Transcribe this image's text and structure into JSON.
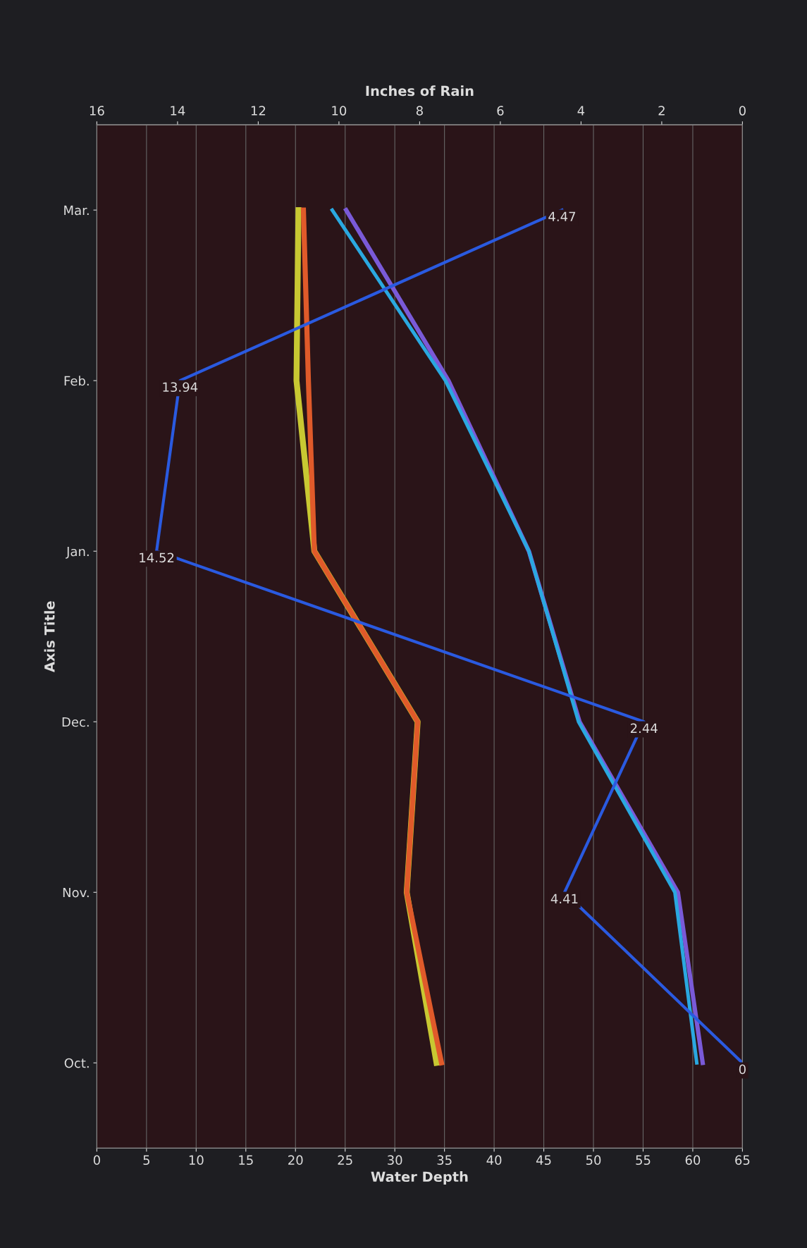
{
  "chart_data": {
    "type": "line",
    "orientation": "horizontal",
    "ylabel": "Axis Title",
    "xlabel": "Water Depth",
    "x2label": "Inches of Rain",
    "categories": [
      "Mar.",
      "Feb.",
      "Jan.",
      "Dec.",
      "Nov.",
      "Oct."
    ],
    "xlim": [
      0,
      65
    ],
    "xticks": [
      0,
      5,
      10,
      15,
      20,
      25,
      30,
      35,
      40,
      45,
      50,
      55,
      60,
      65
    ],
    "x2lim": [
      16,
      0
    ],
    "x2ticks": [
      0,
      2,
      4,
      6,
      8,
      10,
      12,
      14,
      16
    ],
    "grid": "x",
    "marker": "none",
    "line_style": "solid",
    "series": [
      {
        "color": "#c8c832",
        "values": [
          20.3,
          20.1,
          21.9,
          32.3,
          31.2,
          34.2
        ]
      },
      {
        "color": "#e05a2a",
        "values": [
          20.8,
          21.3,
          21.9,
          32.3,
          31.2,
          34.7
        ]
      },
      {
        "color": "#7a5ad8",
        "values": [
          25.1,
          35.4,
          43.5,
          48.6,
          58.5,
          61.0
        ]
      },
      {
        "color": "#2aa8e0",
        "values": [
          23.7,
          35.1,
          43.5,
          48.5,
          58.2,
          60.4
        ]
      },
      {
        "color": "#2a5ae0",
        "axis": "x2",
        "values": [
          4.47,
          13.94,
          14.52,
          2.44,
          4.41,
          0
        ],
        "value_labels": [
          "4.47",
          "13.94",
          "14.52",
          "2.44",
          "4.41",
          "0"
        ]
      }
    ]
  }
}
